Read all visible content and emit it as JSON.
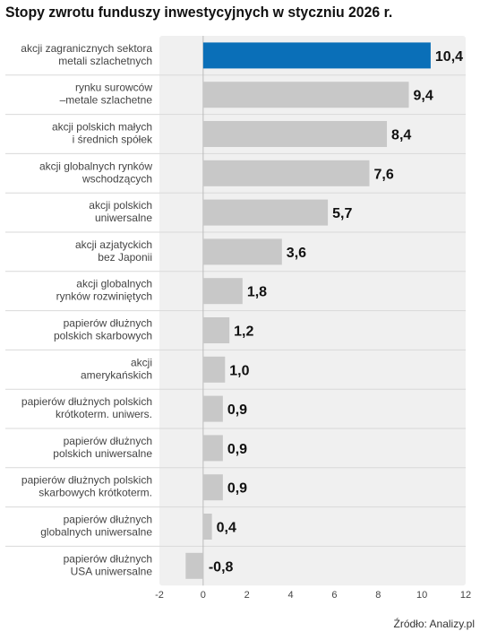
{
  "title": "Stopy zwrotu funduszy inwestycyjnych w styczniu 2026 r.",
  "source": "Źródło: Analizy.pl",
  "chart_data": {
    "type": "bar",
    "orientation": "horizontal",
    "title": "Stopy zwrotu funduszy inwestycyjnych w styczniu 2026 r.",
    "categories": [
      [
        "akcji zagranicznych sektora",
        "metali szlachetnych"
      ],
      [
        "rynku surowców",
        "–metale szlachetne"
      ],
      [
        "akcji polskich małych",
        "i średnich spółek"
      ],
      [
        "akcji globalnych rynków",
        "wschodzących"
      ],
      [
        "akcji polskich",
        "uniwersalne"
      ],
      [
        "akcji azjatyckich",
        "bez Japonii"
      ],
      [
        "akcji globalnych",
        "rynków rozwiniętych"
      ],
      [
        "papierów dłużnych",
        "polskich skarbowych"
      ],
      [
        "akcji",
        "amerykańskich"
      ],
      [
        "papierów dłużnych polskich",
        "krótkoterm. uniwers."
      ],
      [
        "papierów dłużnych",
        "polskich uniwersalne"
      ],
      [
        "papierów dłużnych polskich",
        "skarbowych krótkoterm."
      ],
      [
        "papierów dłużnych",
        "globalnych uniwersalne"
      ],
      [
        "papierów dłużnych",
        "USA uniwersalne"
      ]
    ],
    "values": [
      10.4,
      9.4,
      8.4,
      7.6,
      5.7,
      3.6,
      1.8,
      1.2,
      1.0,
      0.9,
      0.9,
      0.9,
      0.4,
      -0.8
    ],
    "value_labels": [
      "10,4",
      "9,4",
      "8,4",
      "7,6",
      "5,7",
      "3,6",
      "1,8",
      "1,2",
      "1,0",
      "0,9",
      "0,9",
      "0,9",
      "0,4",
      "-0,8"
    ],
    "x_ticks": [
      "-2",
      "0",
      "2",
      "4",
      "6",
      "8",
      "10",
      "12"
    ],
    "xlim": [
      -2,
      12
    ],
    "highlight_index": 0,
    "colors": {
      "highlight": "#0a6fb8",
      "bar": "#c8c8c8",
      "band": "#f0f0f0",
      "separator": "#d9d9d9"
    }
  }
}
